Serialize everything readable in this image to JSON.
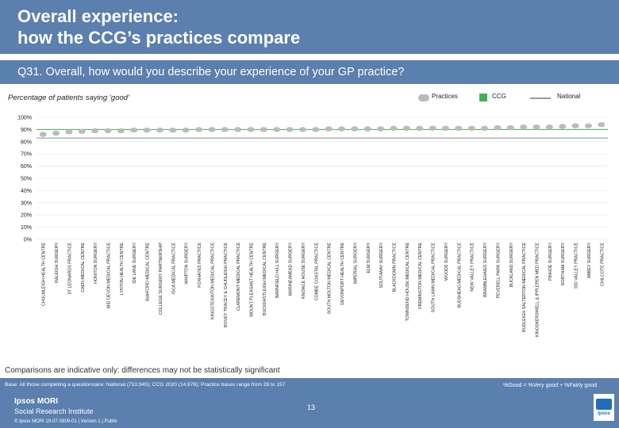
{
  "header": {
    "title_line1": "Overall experience:",
    "title_line2": "how the CCG’s practices compare"
  },
  "question": "Q31. Overall, how would you describe your experience of your GP practice?",
  "subtitle": "Percentage of patients saying ‘good’",
  "legend": {
    "practices": "Practices",
    "ccg": "CCG",
    "national": "National"
  },
  "colors": {
    "header": "#5b7fae",
    "dot": "#b9bbbd",
    "ccg": "#3db54a",
    "national": "#999999"
  },
  "chart_data": {
    "type": "scatter",
    "title": "Percentage of patients saying ‘good’",
    "ylim": [
      0,
      100
    ],
    "y_ticks": [
      "0%",
      "10%",
      "20%",
      "30%",
      "40%",
      "50%",
      "60%",
      "70%",
      "80%",
      "90%",
      "100%"
    ],
    "categories": [
      "CHULMLEIGH HEALTH CENTRE",
      "RALEIGH SURGERY",
      "ST LEONARDS PRACTICE",
      "CAEN MEDICAL CENTRE",
      "HONITON SURGERY",
      "MID DEVON MEDICAL PRACTICE",
      "LYNTON HEALTH CENTRE",
      "IDE LANE SURGERY",
      "BideFORD MEDICAL CENTRE",
      "COLLEGE SURGERY PARTNERSHIP",
      "ISCA MEDICAL PRACTICE",
      "WHIPTON SURGERY",
      "FOXHAYES PRACTICE",
      "KINGSTEIGNTON MEDICAL PRACTICE",
      "BOVEY TRACEY & CHUDLEIGH PRACTICE",
      "CLAREMONT MEDICAL PRACTICE",
      "MOUNT PLEASANT HEALTH CENTRE",
      "BUCKFASTLEIGH MEDICAL CENTRE",
      "BARNFIELD HILL SURGERY",
      "MARINEAMEAD SURGERY",
      "KNOWLE HOUSE SURGERY",
      "COMBE COASTAL PRACTICE",
      "SOUTH MOLTON MEDICAL CENTRE",
      "DEVONPORT HEALTH CENTRE",
      "IMPERIAL SURGERY",
      "ELM SURGERY",
      "SOUTHWAY SURGERY",
      "BLACKDOWN PRACTICE",
      "TOWNSEND HOUSE MEDICAL CENTRE",
      "FREMINGTON MEDICAL CENTRE",
      "SOUTH LAWN MEDICAL PRACTICE",
      "WOODS SURGERY",
      "BUDSHEAD MEDICAL PRACTICE",
      "NEW VALLEY PRACTICE",
      "BRAMBLEHAIES SURGERY",
      "PEVERELL PARK SURGERY",
      "BUCKLAND SURGERY",
      "BUDLEIGH SALTERTON MEDICAL PRACTICE",
      "KINGSKERSWELL & IPPLEPEN MED PRACTICE",
      "PINHOE SURGERY",
      "NORTHAM SURGERY",
      "SID VALLEY PRACTICE",
      "ABBEY SURGERY",
      "CHILCOTE PRACTICE"
    ],
    "series": [
      {
        "name": "Practices",
        "values": [
          86,
          87,
          88,
          88.5,
          89,
          89,
          89,
          89.5,
          89.5,
          89.5,
          89.5,
          89.5,
          90,
          90,
          90,
          90,
          90,
          90,
          90,
          90,
          90,
          90,
          90.5,
          90.5,
          90.5,
          90.5,
          90.5,
          91,
          91,
          91,
          91,
          91,
          91,
          91,
          91,
          91.5,
          91.5,
          92,
          92,
          92,
          92.5,
          93,
          93,
          94
        ]
      }
    ],
    "ccg_value": 90,
    "national_value": 83
  },
  "note": "Comparisons are indicative only: differences may not be statistically significant",
  "footer": {
    "base": "Base: All those completing a questionnaire: National (710,945); CCG 2020 (14,676); Practice bases range from 28 to 157",
    "formula": "%Good = %Very good + %Fairly good",
    "brand": "Ipsos MORI",
    "brand_sub": "Social Research Institute",
    "copyright": "© Ipsos MORI     19-07-0809-01 | Version 1 | Public",
    "page": "13",
    "logo_text": "Ipsos"
  }
}
